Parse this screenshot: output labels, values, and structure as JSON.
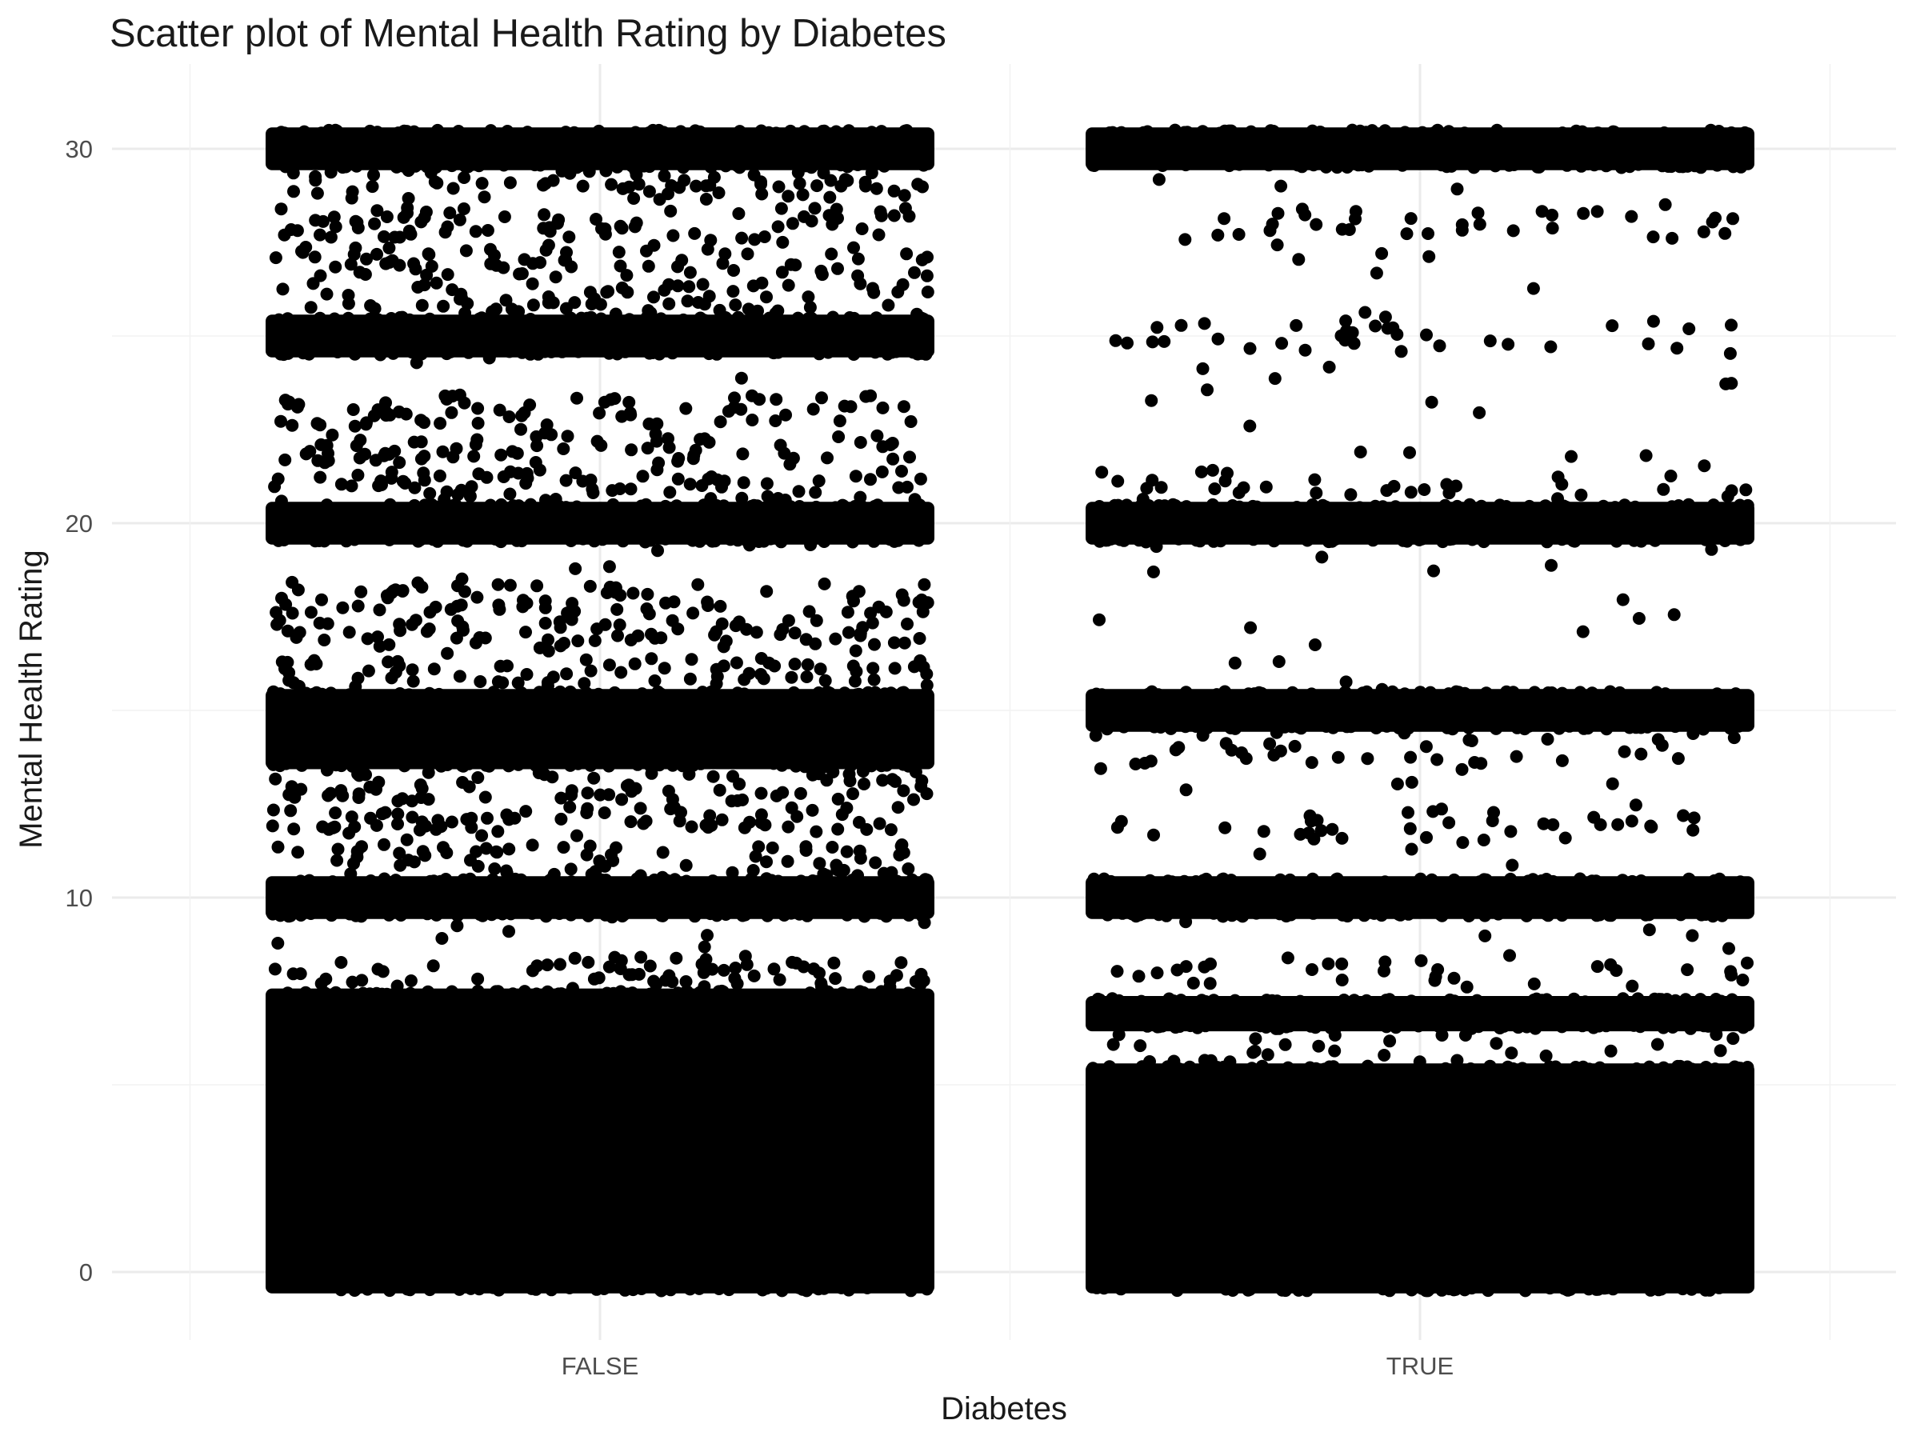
{
  "chart_data": {
    "type": "scatter",
    "title": "Scatter plot of Mental Health Rating by Diabetes",
    "xlabel": "Diabetes",
    "ylabel": "Mental Health Rating",
    "categories": [
      "FALSE",
      "TRUE"
    ],
    "x_tick_labels": [
      "FALSE",
      "TRUE"
    ],
    "y_ticks": [
      0,
      10,
      20,
      30
    ],
    "ylim": [
      -1.5,
      31.5
    ],
    "grid": true,
    "jitter": true,
    "point_color": "#000000",
    "series": [
      {
        "category": "FALSE",
        "dense_ranges": [
          [
            -0.4,
            7.4
          ],
          [
            9.6,
            10.4
          ],
          [
            13.6,
            15.4
          ],
          [
            19.6,
            20.4
          ],
          [
            24.6,
            25.4
          ],
          [
            29.6,
            30.4
          ]
        ],
        "band_values": [
          8,
          11,
          12,
          13,
          16,
          17,
          18,
          21,
          22,
          23,
          26,
          27,
          28,
          29
        ],
        "band_density": "medium"
      },
      {
        "category": "TRUE",
        "dense_ranges": [
          [
            -0.4,
            5.4
          ],
          [
            6.6,
            7.2
          ],
          [
            9.6,
            10.4
          ],
          [
            14.6,
            15.4
          ],
          [
            19.6,
            20.4
          ],
          [
            29.6,
            30.4
          ]
        ],
        "band_values": [
          6,
          8,
          12,
          14,
          21,
          25,
          28
        ],
        "band_density": "sparse"
      }
    ]
  }
}
